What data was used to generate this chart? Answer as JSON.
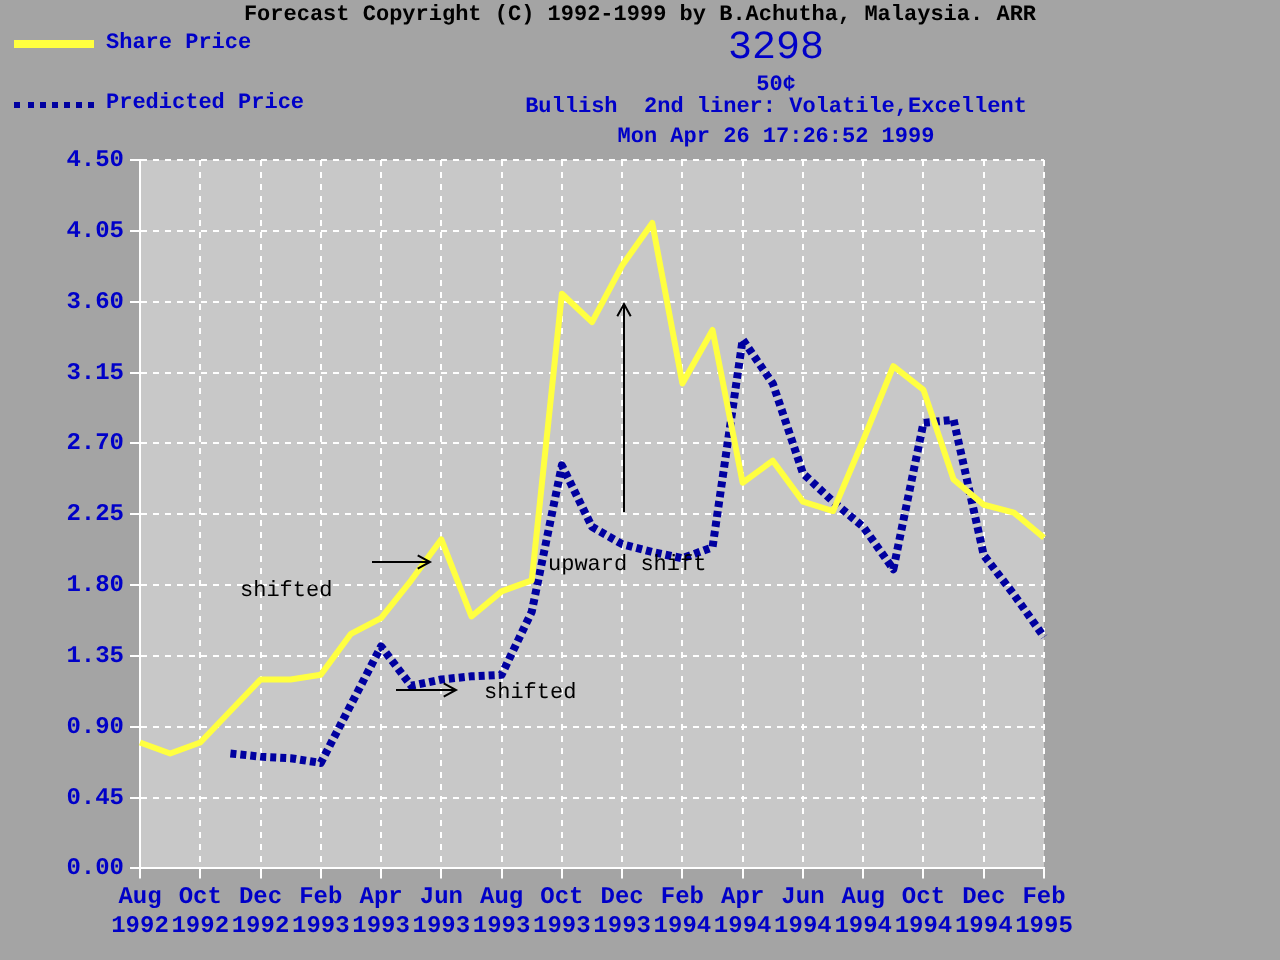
{
  "chart_data": {
    "type": "line",
    "title": "Forecast Copyright (C) 1992-1999 by B.Achutha, Malaysia. ARR",
    "subtitle": "3298",
    "annotations": [
      "50¢",
      "Bullish  2nd liner: Volatile,Excellent",
      "Mon Apr 26 17:26:52 1999",
      "shifted",
      "shifted",
      "upward shift"
    ],
    "categories": [
      "Aug 1992",
      null,
      "Oct 1992",
      null,
      "Dec 1992",
      null,
      "Feb 1993",
      null,
      "Apr 1993",
      null,
      "Jun 1993",
      null,
      "Aug 1993",
      null,
      "Oct 1993",
      null,
      "Dec 1993",
      null,
      "Feb 1994",
      null,
      "Apr 1994",
      null,
      "Jun 1994",
      null,
      "Aug 1994",
      null,
      "Oct 1994",
      null,
      "Dec 1994",
      null,
      "Feb 1995"
    ],
    "series": [
      {
        "name": "Share Price",
        "color": "#ffff40",
        "line_style": "solid",
        "values": [
          0.8,
          0.73,
          0.8,
          1.0,
          1.2,
          1.2,
          1.23,
          1.49,
          1.59,
          1.83,
          2.09,
          1.6,
          1.76,
          1.83,
          3.65,
          3.47,
          3.83,
          4.1,
          3.08,
          3.42,
          2.45,
          2.59,
          2.33,
          2.27,
          2.72,
          3.19,
          3.04,
          2.47,
          2.31,
          2.26,
          2.1
        ]
      },
      {
        "name": "Predicted Price",
        "color": "#0000a0",
        "line_style": "dotted",
        "values": [
          null,
          null,
          null,
          0.73,
          0.71,
          0.7,
          0.67,
          1.04,
          1.41,
          1.16,
          1.2,
          1.22,
          1.23,
          1.63,
          2.56,
          2.17,
          2.06,
          2.01,
          1.97,
          2.04,
          3.36,
          3.08,
          2.51,
          2.33,
          2.17,
          1.9,
          2.83,
          2.85,
          1.99,
          1.74,
          1.47
        ]
      }
    ],
    "ylim": [
      0,
      4.5
    ],
    "yticks": [
      {
        "value": 0,
        "label": "0.00"
      },
      {
        "value": 0.45,
        "label": "0.45"
      },
      {
        "value": 0.9,
        "label": "0.90"
      },
      {
        "value": 1.35,
        "label": "1.35"
      },
      {
        "value": 1.8,
        "label": "1.80"
      },
      {
        "value": 2.25,
        "label": "2.25"
      },
      {
        "value": 2.7,
        "label": "2.70"
      },
      {
        "value": 3.15,
        "label": "3.15"
      },
      {
        "value": 3.6,
        "label": "3.60"
      },
      {
        "value": 4.05,
        "label": "4.05"
      },
      {
        "value": 4.5,
        "label": "4.50"
      }
    ],
    "grid": true,
    "legend": "top left",
    "marker": "none"
  }
}
